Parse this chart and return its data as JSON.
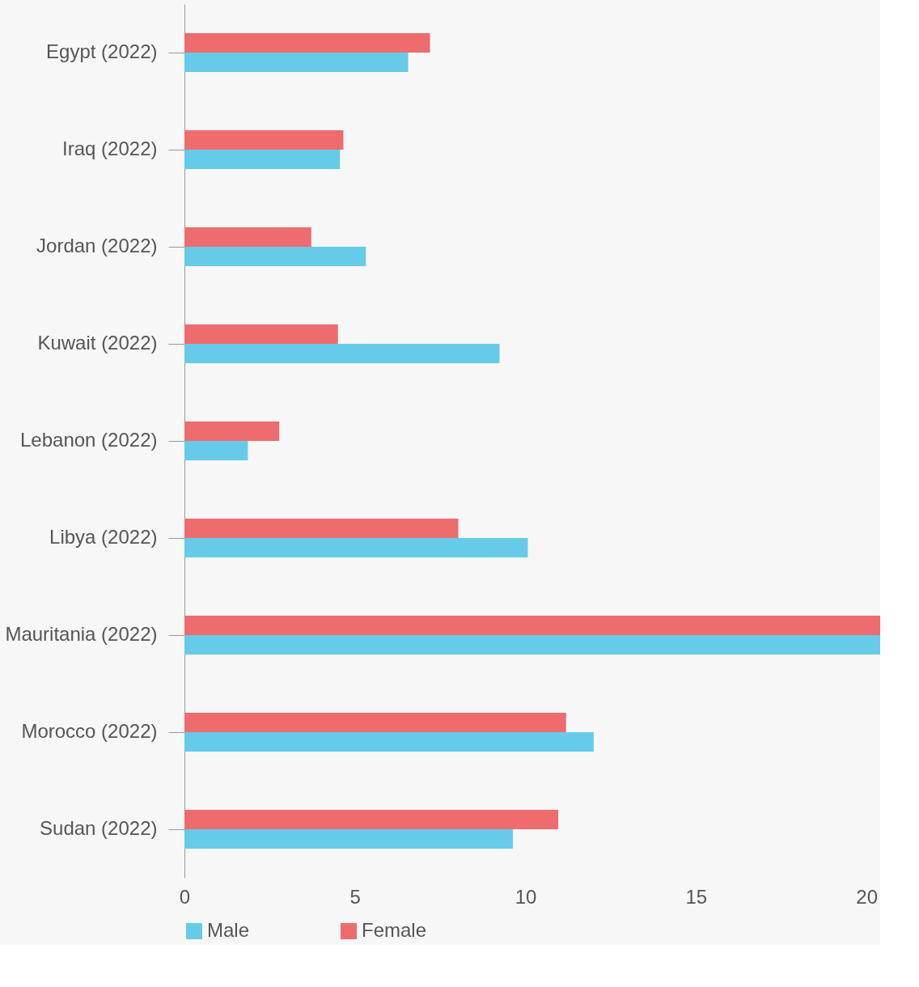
{
  "chart_data": {
    "type": "bar",
    "orientation": "horizontal",
    "categories": [
      "Egypt (2022)",
      "Iraq (2022)",
      "Jordan (2022)",
      "Kuwait (2022)",
      "Lebanon (2022)",
      "Libya (2022)",
      "Mauritania (2022)",
      "Morocco (2022)",
      "Sudan (2022)"
    ],
    "series": [
      {
        "name": "Male",
        "color": "#66cbe8",
        "values": [
          6.56,
          4.56,
          5.32,
          9.24,
          1.86,
          10.07,
          20.4,
          12.0,
          9.63
        ]
      },
      {
        "name": "Female",
        "color": "#ee6b6e",
        "values": [
          7.2,
          4.66,
          3.72,
          4.5,
          2.78,
          8.03,
          20.4,
          11.19,
          10.96
        ]
      }
    ],
    "xlim": [
      0,
      20.4
    ],
    "xticks": [
      0,
      5,
      10,
      15,
      20
    ],
    "grid": false,
    "legend": "bottom"
  }
}
